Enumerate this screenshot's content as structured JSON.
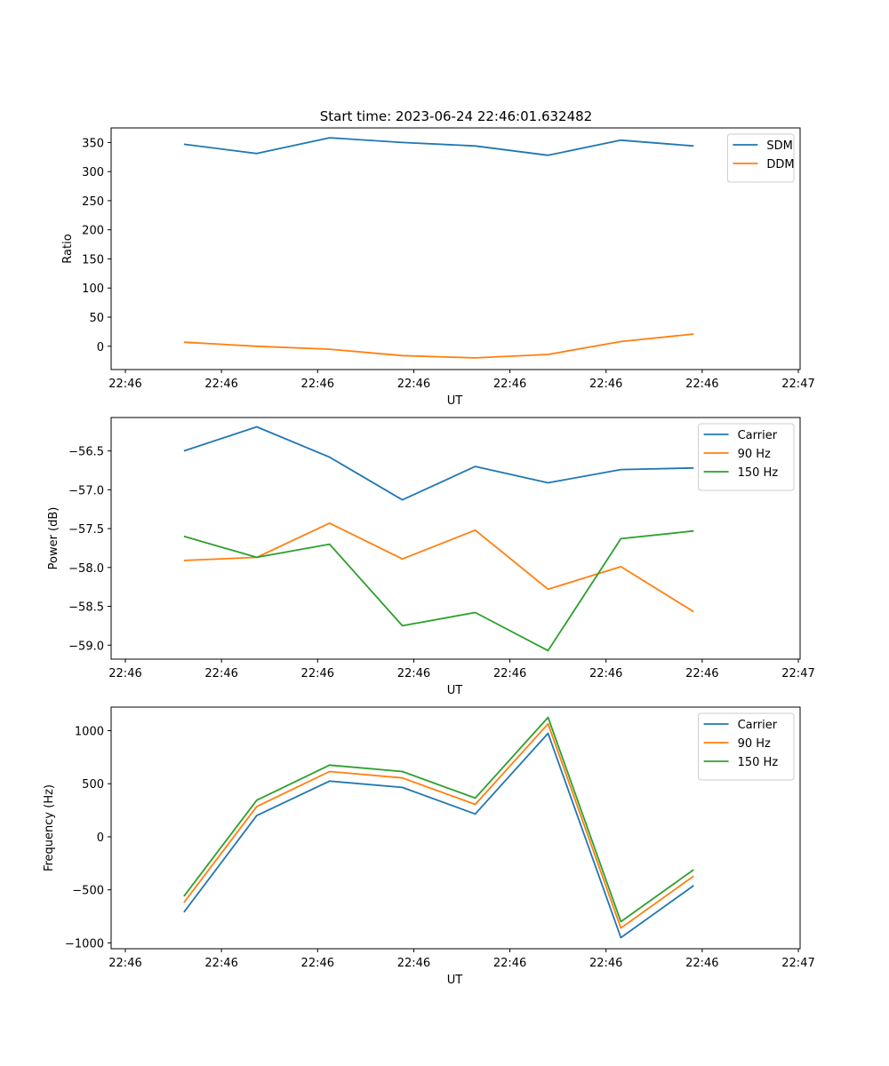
{
  "figure": {
    "title": "Start time: 2023-06-24 22:46:01.632482"
  },
  "colors": {
    "blue": "#1f77b4",
    "orange": "#ff7f0e",
    "green": "#2ca02c",
    "axis": "#000000",
    "legend_border": "#cccccc"
  },
  "chart_data": [
    {
      "type": "line",
      "xlabel": "UT",
      "ylabel": "Ratio",
      "grid": false,
      "legend_position": "top-right",
      "x_tick_labels": [
        "22:46",
        "22:46",
        "22:46",
        "22:46",
        "22:46",
        "22:46",
        "22:46",
        "22:47"
      ],
      "x_index": [
        0.5,
        1.15,
        1.8,
        2.45,
        3.1,
        3.75,
        4.4,
        5.05
      ],
      "xlim": [
        -0.15,
        6.0
      ],
      "ylim": [
        -40,
        375
      ],
      "y_ticks": [
        0,
        50,
        100,
        150,
        200,
        250,
        300,
        350
      ],
      "y_tick_labels": [
        "0",
        "50",
        "100",
        "150",
        "200",
        "250",
        "300",
        "350"
      ],
      "series": [
        {
          "name": "SDM",
          "color": "blue",
          "values": [
            347,
            331,
            358,
            350,
            344,
            328,
            354,
            344
          ]
        },
        {
          "name": "DDM",
          "color": "orange",
          "values": [
            7,
            0,
            -5,
            -16,
            -20,
            -14,
            8,
            21
          ]
        }
      ]
    },
    {
      "type": "line",
      "xlabel": "UT",
      "ylabel": "Power (dB)",
      "grid": false,
      "legend_position": "top-right",
      "x_tick_labels": [
        "22:46",
        "22:46",
        "22:46",
        "22:46",
        "22:46",
        "22:46",
        "22:46",
        "22:47"
      ],
      "x_index": [
        0.5,
        1.15,
        1.8,
        2.45,
        3.1,
        3.75,
        4.4,
        5.05
      ],
      "xlim": [
        -0.15,
        6.0
      ],
      "ylim": [
        -59.18,
        -56.07
      ],
      "y_ticks": [
        -59.0,
        -58.5,
        -58.0,
        -57.5,
        -57.0,
        -56.5
      ],
      "y_tick_labels": [
        "−59.0",
        "−58.5",
        "−58.0",
        "−57.5",
        "−57.0",
        "−56.5"
      ],
      "series": [
        {
          "name": "Carrier",
          "color": "blue",
          "values": [
            -56.5,
            -56.19,
            -56.58,
            -57.13,
            -56.7,
            -56.91,
            -56.74,
            -56.72
          ]
        },
        {
          "name": "90 Hz",
          "color": "orange",
          "values": [
            -57.91,
            -57.87,
            -57.43,
            -57.89,
            -57.52,
            -58.28,
            -57.99,
            -58.57
          ]
        },
        {
          "name": "150 Hz",
          "color": "green",
          "values": [
            -57.6,
            -57.87,
            -57.7,
            -58.75,
            -58.58,
            -59.07,
            -57.63,
            -57.53
          ]
        }
      ]
    },
    {
      "type": "line",
      "xlabel": "UT",
      "ylabel": "Frequency (Hz)",
      "grid": false,
      "legend_position": "top-right",
      "x_tick_labels": [
        "22:46",
        "22:46",
        "22:46",
        "22:46",
        "22:46",
        "22:46",
        "22:46",
        "22:47"
      ],
      "x_index": [
        0.5,
        1.15,
        1.8,
        2.45,
        3.1,
        3.75,
        4.4,
        5.05
      ],
      "xlim": [
        -0.15,
        6.0
      ],
      "ylim": [
        -1055,
        1222
      ],
      "y_ticks": [
        -1000,
        -500,
        0,
        500,
        1000
      ],
      "y_tick_labels": [
        "−1000",
        "−500",
        "0",
        "500",
        "1000"
      ],
      "series": [
        {
          "name": "Carrier",
          "color": "blue",
          "values": [
            -710,
            200,
            525,
            465,
            215,
            975,
            -950,
            -460
          ]
        },
        {
          "name": "90 Hz",
          "color": "orange",
          "values": [
            -620,
            285,
            615,
            555,
            305,
            1065,
            -860,
            -370
          ]
        },
        {
          "name": "150 Hz",
          "color": "green",
          "values": [
            -560,
            345,
            675,
            615,
            365,
            1125,
            -800,
            -310
          ]
        }
      ]
    }
  ]
}
